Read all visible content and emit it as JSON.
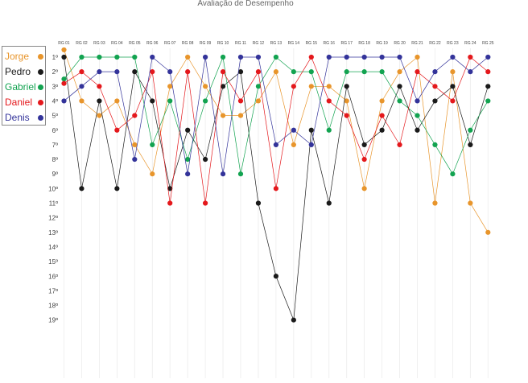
{
  "chart_data": {
    "type": "line",
    "title": "Avaliação de Desempenho",
    "xlabel": "",
    "ylabel": "",
    "categories": [
      "RG 01",
      "RG 02",
      "RG 03",
      "RG 04",
      "RG 05",
      "RG 06",
      "RG 07",
      "RG 08",
      "RG 09",
      "RG 10",
      "RG 11",
      "RG 12",
      "RG 13",
      "RG 14",
      "RG 15",
      "RG 16",
      "RG 17",
      "RG 18",
      "RG 19",
      "RG 20",
      "RG 21",
      "RG 22",
      "RG 23",
      "RG 24",
      "RG 25"
    ],
    "y_tick_labels": [
      "1º",
      "2º",
      "3º",
      "4º",
      "5º",
      "6º",
      "7º",
      "8º",
      "9º",
      "10º",
      "11º",
      "12º",
      "13º",
      "14º",
      "15º",
      "16º",
      "17º",
      "18º",
      "19º"
    ],
    "ylim": [
      0.5,
      19
    ],
    "y_inverted": true,
    "grid": "vertical",
    "legend_position": "left",
    "series": [
      {
        "name": "Jorge",
        "color": "#e8952b",
        "values": [
          0.5,
          4,
          5,
          4,
          7,
          9,
          3,
          1,
          3,
          5,
          5,
          4,
          2,
          7,
          3,
          3,
          4,
          10,
          4,
          2,
          1,
          11,
          2,
          11,
          13
        ]
      },
      {
        "name": "Pedro",
        "color": "#1a1a1a",
        "values": [
          1,
          10,
          4,
          10,
          2,
          4,
          10,
          6,
          8,
          3,
          2,
          11,
          16,
          19,
          6,
          11,
          3,
          7,
          6,
          3,
          6,
          4,
          3,
          7,
          3
        ]
      },
      {
        "name": "Gabriel",
        "color": "#12a350",
        "values": [
          2.5,
          1,
          1,
          1,
          1,
          7,
          4,
          8,
          4,
          1,
          9,
          3,
          1,
          2,
          2,
          6,
          2,
          2,
          2,
          4,
          5,
          7,
          9,
          6,
          4
        ]
      },
      {
        "name": "Daniel",
        "color": "#e4181c",
        "values": [
          2.8,
          2,
          3,
          6,
          5,
          2,
          11,
          2,
          11,
          2,
          4,
          2,
          10,
          3,
          1,
          4,
          5,
          8,
          5,
          7,
          2,
          3,
          4,
          1,
          2
        ]
      },
      {
        "name": "Denis",
        "color": "#33339a",
        "values": [
          4,
          3,
          2,
          2,
          8,
          1,
          2,
          9,
          1,
          9,
          1,
          1,
          7,
          6,
          7,
          1,
          1,
          1,
          1,
          1,
          4,
          2,
          1,
          2,
          1
        ]
      }
    ]
  }
}
